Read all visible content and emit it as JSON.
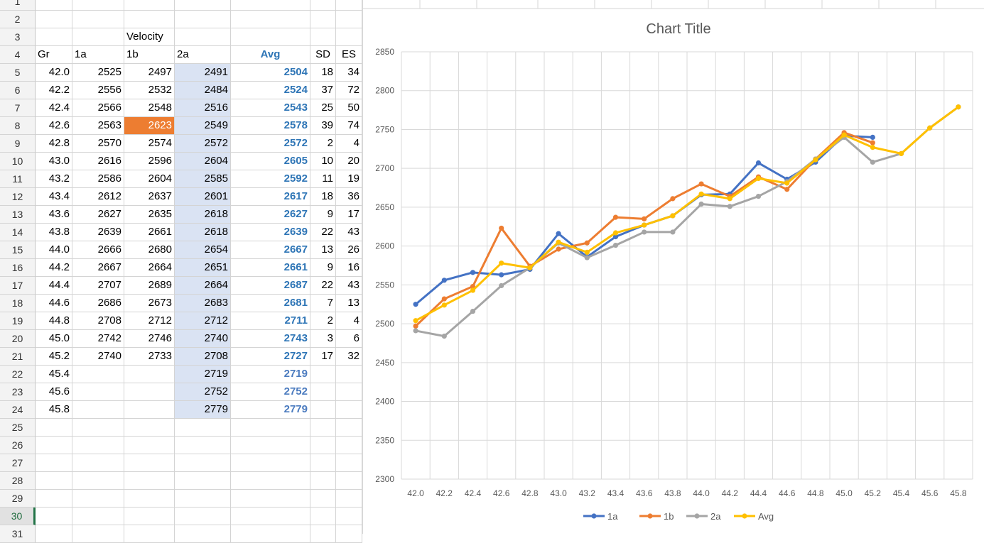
{
  "rows": [
    {
      "n": "1",
      "gr": "",
      "a1": "",
      "b1": "",
      "a2": "",
      "avg": "",
      "sd": "",
      "es": ""
    },
    {
      "n": "2",
      "gr": "",
      "a1": "",
      "b1": "",
      "a2": "",
      "avg": "",
      "sd": "",
      "es": ""
    },
    {
      "n": "3",
      "gr": "",
      "a1": "",
      "b1": "Velocity",
      "a2": "",
      "avg": "",
      "sd": "",
      "es": ""
    },
    {
      "n": "4",
      "gr": "Gr",
      "a1": "1a",
      "b1": "1b",
      "a2": "2a",
      "avg": "Avg",
      "sd": "SD",
      "es": "ES"
    },
    {
      "n": "5",
      "gr": "42.0",
      "a1": "2525",
      "b1": "2497",
      "a2": "2491",
      "avg": "2504",
      "sd": "18",
      "es": "34"
    },
    {
      "n": "6",
      "gr": "42.2",
      "a1": "2556",
      "b1": "2532",
      "a2": "2484",
      "avg": "2524",
      "sd": "37",
      "es": "72"
    },
    {
      "n": "7",
      "gr": "42.4",
      "a1": "2566",
      "b1": "2548",
      "a2": "2516",
      "avg": "2543",
      "sd": "25",
      "es": "50"
    },
    {
      "n": "8",
      "gr": "42.6",
      "a1": "2563",
      "b1": "2623",
      "a2": "2549",
      "avg": "2578",
      "sd": "39",
      "es": "74"
    },
    {
      "n": "9",
      "gr": "42.8",
      "a1": "2570",
      "b1": "2574",
      "a2": "2572",
      "avg": "2572",
      "sd": "2",
      "es": "4"
    },
    {
      "n": "10",
      "gr": "43.0",
      "a1": "2616",
      "b1": "2596",
      "a2": "2604",
      "avg": "2605",
      "sd": "10",
      "es": "20"
    },
    {
      "n": "11",
      "gr": "43.2",
      "a1": "2586",
      "b1": "2604",
      "a2": "2585",
      "avg": "2592",
      "sd": "11",
      "es": "19"
    },
    {
      "n": "12",
      "gr": "43.4",
      "a1": "2612",
      "b1": "2637",
      "a2": "2601",
      "avg": "2617",
      "sd": "18",
      "es": "36"
    },
    {
      "n": "13",
      "gr": "43.6",
      "a1": "2627",
      "b1": "2635",
      "a2": "2618",
      "avg": "2627",
      "sd": "9",
      "es": "17"
    },
    {
      "n": "14",
      "gr": "43.8",
      "a1": "2639",
      "b1": "2661",
      "a2": "2618",
      "avg": "2639",
      "sd": "22",
      "es": "43"
    },
    {
      "n": "15",
      "gr": "44.0",
      "a1": "2666",
      "b1": "2680",
      "a2": "2654",
      "avg": "2667",
      "sd": "13",
      "es": "26"
    },
    {
      "n": "16",
      "gr": "44.2",
      "a1": "2667",
      "b1": "2664",
      "a2": "2651",
      "avg": "2661",
      "sd": "9",
      "es": "16"
    },
    {
      "n": "17",
      "gr": "44.4",
      "a1": "2707",
      "b1": "2689",
      "a2": "2664",
      "avg": "2687",
      "sd": "22",
      "es": "43"
    },
    {
      "n": "18",
      "gr": "44.6",
      "a1": "2686",
      "b1": "2673",
      "a2": "2683",
      "avg": "2681",
      "sd": "7",
      "es": "13"
    },
    {
      "n": "19",
      "gr": "44.8",
      "a1": "2708",
      "b1": "2712",
      "a2": "2712",
      "avg": "2711",
      "sd": "2",
      "es": "4"
    },
    {
      "n": "20",
      "gr": "45.0",
      "a1": "2742",
      "b1": "2746",
      "a2": "2740",
      "avg": "2743",
      "sd": "3",
      "es": "6"
    },
    {
      "n": "21",
      "gr": "45.2",
      "a1": "2740",
      "b1": "2733",
      "a2": "2708",
      "avg": "2727",
      "sd": "17",
      "es": "32"
    },
    {
      "n": "22",
      "gr": "45.4",
      "a1": "",
      "b1": "",
      "a2": "2719",
      "avg": "2719",
      "sd": "",
      "es": ""
    },
    {
      "n": "23",
      "gr": "45.6",
      "a1": "",
      "b1": "",
      "a2": "2752",
      "avg": "2752",
      "sd": "",
      "es": ""
    },
    {
      "n": "24",
      "gr": "45.8",
      "a1": "",
      "b1": "",
      "a2": "2779",
      "avg": "2779",
      "sd": "",
      "es": ""
    },
    {
      "n": "25",
      "gr": "",
      "a1": "",
      "b1": "",
      "a2": "",
      "avg": "",
      "sd": "",
      "es": ""
    },
    {
      "n": "26",
      "gr": "",
      "a1": "",
      "b1": "",
      "a2": "",
      "avg": "",
      "sd": "",
      "es": ""
    },
    {
      "n": "27",
      "gr": "",
      "a1": "",
      "b1": "",
      "a2": "",
      "avg": "",
      "sd": "",
      "es": ""
    },
    {
      "n": "28",
      "gr": "",
      "a1": "",
      "b1": "",
      "a2": "",
      "avg": "",
      "sd": "",
      "es": ""
    },
    {
      "n": "29",
      "gr": "",
      "a1": "",
      "b1": "",
      "a2": "",
      "avg": "",
      "sd": "",
      "es": ""
    },
    {
      "n": "30",
      "gr": "",
      "a1": "",
      "b1": "",
      "a2": "",
      "avg": "",
      "sd": "",
      "es": ""
    },
    {
      "n": "31",
      "gr": "",
      "a1": "",
      "b1": "",
      "a2": "",
      "avg": "",
      "sd": "",
      "es": ""
    }
  ],
  "active_row": "30",
  "highlighted_cell_value": "2623",
  "colors": {
    "s1a": "#4472c4",
    "s1b": "#ed7d31",
    "s2a": "#a5a5a5",
    "avg": "#ffc000",
    "highlight": "#ed7d31",
    "shade": "#dae3f3",
    "avg_text": "#2e75b6"
  },
  "chart_data": {
    "type": "line",
    "title": "Chart Title",
    "categories": [
      "42.0",
      "42.2",
      "42.4",
      "42.6",
      "42.8",
      "43.0",
      "43.2",
      "43.4",
      "43.6",
      "43.8",
      "44.0",
      "44.2",
      "44.4",
      "44.6",
      "44.8",
      "45.0",
      "45.2",
      "45.4",
      "45.6",
      "45.8"
    ],
    "ylim": [
      2300,
      2850
    ],
    "yticks": [
      "2300",
      "2350",
      "2400",
      "2450",
      "2500",
      "2550",
      "2600",
      "2650",
      "2700",
      "2750",
      "2800",
      "2850"
    ],
    "grid": true,
    "legend_position": "bottom",
    "series": [
      {
        "name": "1a",
        "color": "#4472c4",
        "values": [
          2525,
          2556,
          2566,
          2563,
          2570,
          2616,
          2586,
          2612,
          2627,
          2639,
          2666,
          2667,
          2707,
          2686,
          2708,
          2742,
          2740,
          null,
          null,
          null
        ]
      },
      {
        "name": "1b",
        "color": "#ed7d31",
        "values": [
          2497,
          2532,
          2548,
          2623,
          2574,
          2596,
          2604,
          2637,
          2635,
          2661,
          2680,
          2664,
          2689,
          2673,
          2712,
          2746,
          2733,
          null,
          null,
          null
        ]
      },
      {
        "name": "2a",
        "color": "#a5a5a5",
        "values": [
          2491,
          2484,
          2516,
          2549,
          2572,
          2604,
          2585,
          2601,
          2618,
          2618,
          2654,
          2651,
          2664,
          2683,
          2712,
          2740,
          2708,
          2719,
          2752,
          2779
        ]
      },
      {
        "name": "Avg",
        "color": "#ffc000",
        "values": [
          2504,
          2524,
          2543,
          2578,
          2572,
          2605,
          2592,
          2617,
          2627,
          2639,
          2667,
          2661,
          2687,
          2681,
          2711,
          2743,
          2727,
          2719,
          2752,
          2779
        ]
      }
    ]
  }
}
